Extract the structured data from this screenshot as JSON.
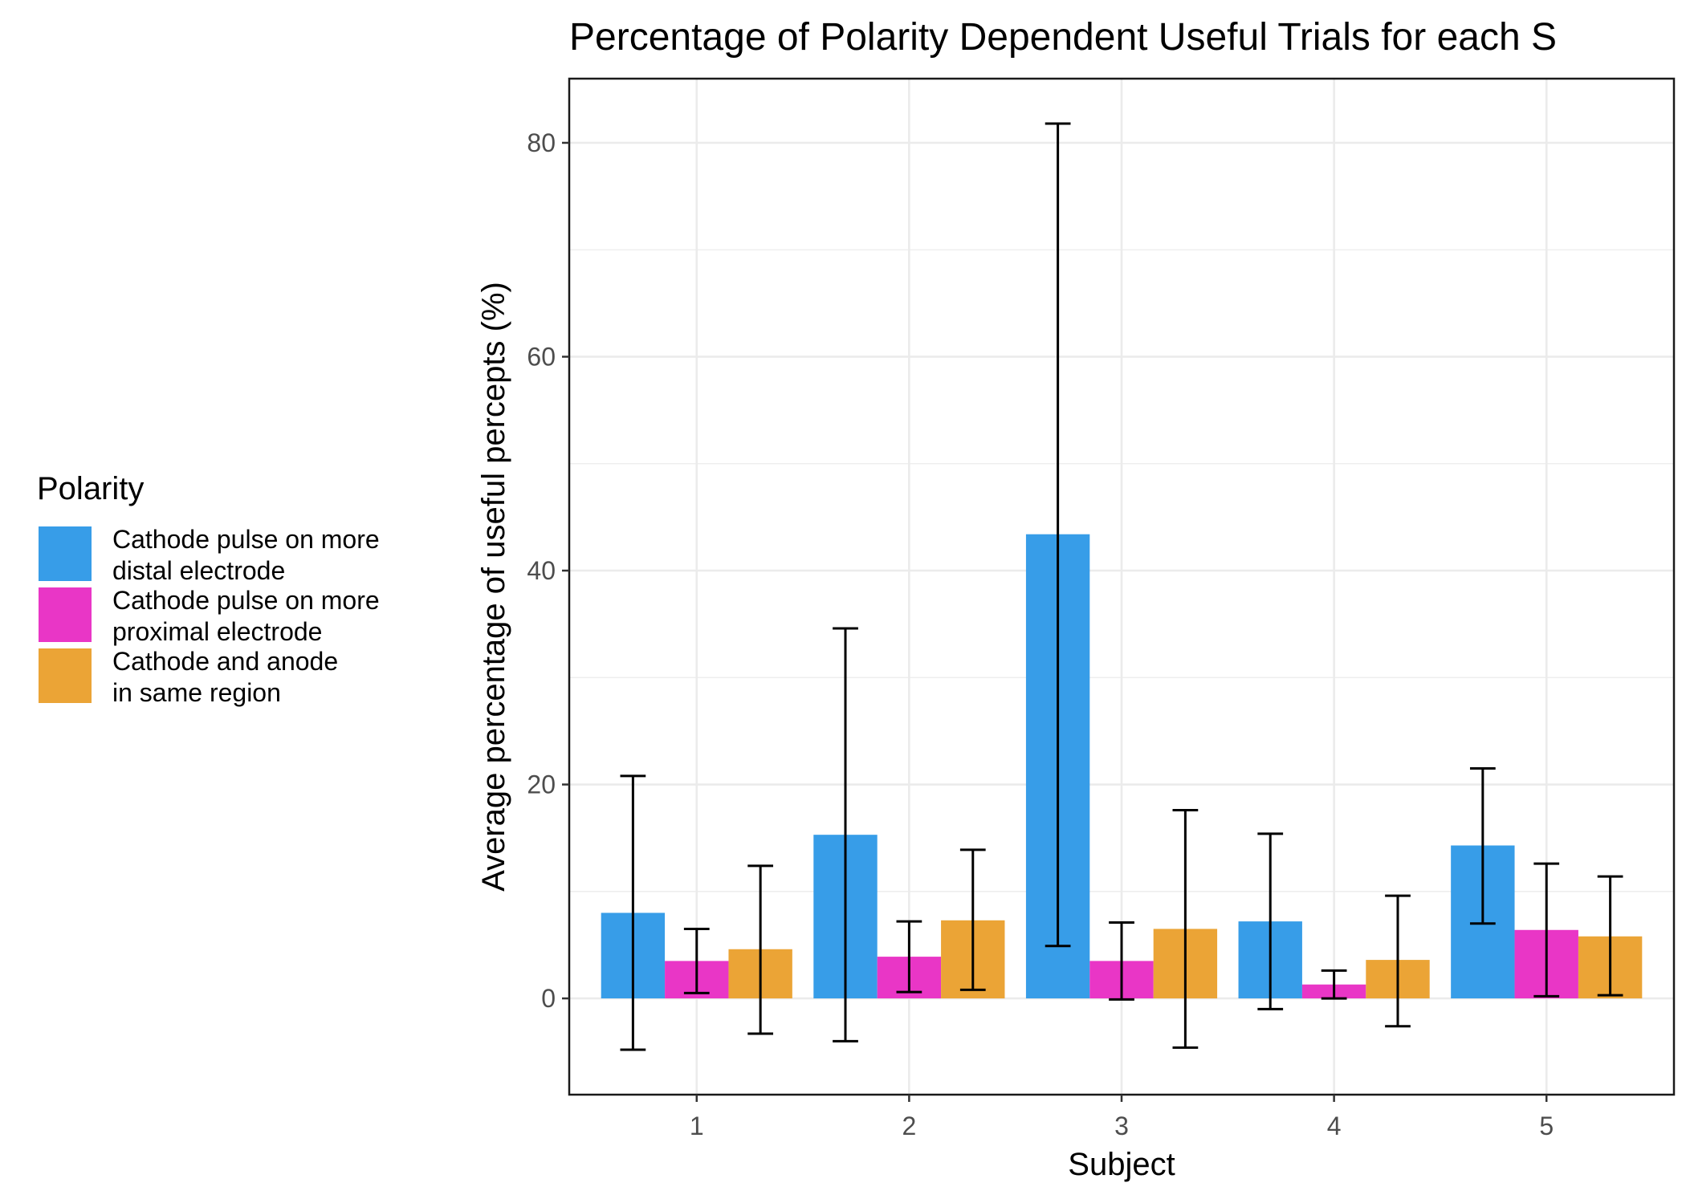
{
  "chart_data": {
    "type": "bar",
    "title": "Percentage of Polarity Dependent Useful Trials for each S",
    "xlabel": "Subject",
    "ylabel": "Average percentage of useful percepts (%)",
    "categories": [
      "1",
      "2",
      "3",
      "4",
      "5"
    ],
    "ylim": [
      -9,
      86
    ],
    "yticks": [
      0,
      20,
      40,
      60,
      80
    ],
    "grid": true,
    "legend": {
      "title": "Polarity",
      "position": "left"
    },
    "series": [
      {
        "name": "Cathode pulse on more distal electrode",
        "label_lines": [
          "Cathode pulse on more",
          "distal electrode"
        ],
        "color": "#379DE8",
        "values": [
          8.0,
          15.3,
          43.4,
          7.2,
          14.3
        ],
        "error_low": [
          -4.8,
          -4.0,
          4.9,
          -1.0,
          7.0
        ],
        "error_high": [
          20.8,
          34.6,
          81.8,
          15.4,
          21.5
        ]
      },
      {
        "name": "Cathode pulse on more proximal electrode",
        "label_lines": [
          "Cathode pulse on more",
          "proximal electrode"
        ],
        "color": "#E936C6",
        "values": [
          3.5,
          3.9,
          3.5,
          1.3,
          6.4
        ],
        "error_low": [
          0.5,
          0.6,
          -0.1,
          0.0,
          0.2
        ],
        "error_high": [
          6.5,
          7.2,
          7.1,
          2.6,
          12.6
        ]
      },
      {
        "name": "Cathode and anode in same region",
        "label_lines": [
          "Cathode and anode",
          "in same region"
        ],
        "color": "#EBA436",
        "values": [
          4.6,
          7.3,
          6.5,
          3.6,
          5.8
        ],
        "error_low": [
          -3.3,
          0.8,
          -4.6,
          -2.6,
          0.3
        ],
        "error_high": [
          12.4,
          13.9,
          17.6,
          9.6,
          11.4
        ]
      }
    ]
  }
}
